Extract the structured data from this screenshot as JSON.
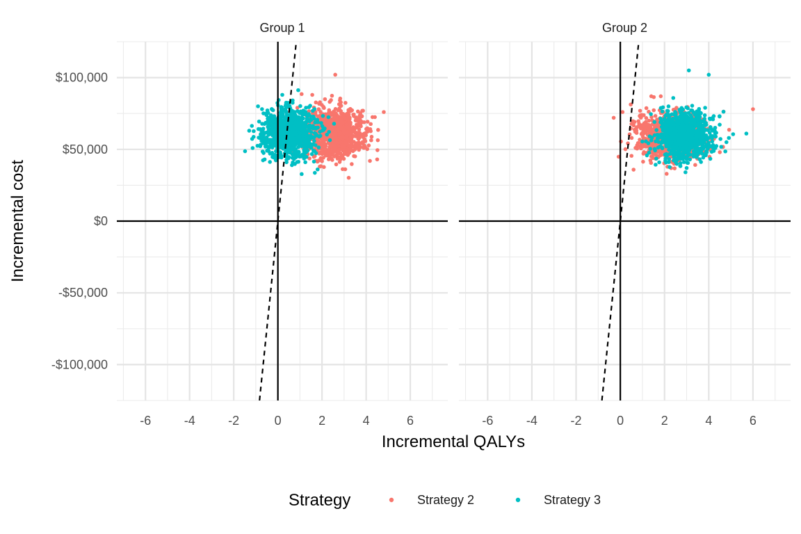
{
  "chart_data": {
    "type": "scatter",
    "xlabel": "Incremental QALYs",
    "ylabel": "Incremental cost",
    "xlim": [
      -7.3,
      7.7
    ],
    "ylim": [
      -125000,
      125000
    ],
    "x_ticks": [
      -6,
      -4,
      -2,
      0,
      2,
      4,
      6
    ],
    "x_tick_labels": [
      "-6",
      "-4",
      "-2",
      "0",
      "2",
      "4",
      "6"
    ],
    "y_ticks": [
      -100000,
      -50000,
      0,
      50000,
      100000
    ],
    "y_tick_labels": [
      "-$100,000",
      "-$50,000",
      "$0",
      "$50,000",
      "$100,000"
    ],
    "grid": true,
    "reference_lines": {
      "hline": 0,
      "vline": 0,
      "wtp_line_slope": 150000
    },
    "legend": {
      "title": "Strategy",
      "position": "bottom",
      "entries": [
        {
          "label": "Strategy 2",
          "color": "#F8766D"
        },
        {
          "label": "Strategy 3",
          "color": "#00BFC4"
        }
      ]
    },
    "facets": [
      {
        "label": "Group 1",
        "series": [
          {
            "name": "Strategy 2",
            "color": "#F8766D",
            "n": 1000,
            "center": [
              2.6,
              61000
            ],
            "sd": [
              0.65,
              8500
            ],
            "extremes": [
              [
                2.6,
                102000
              ],
              [
                4.5,
                43000
              ],
              [
                4.8,
                76000
              ],
              [
                1.9,
                38000
              ],
              [
                3.9,
                51000
              ]
            ]
          },
          {
            "name": "Strategy 3",
            "color": "#00BFC4",
            "n": 1000,
            "center": [
              0.5,
              62000
            ],
            "sd": [
              0.6,
              8500
            ],
            "extremes": [
              [
                -1.3,
                63000
              ],
              [
                -0.9,
                80000
              ],
              [
                0.2,
                88000
              ],
              [
                1.8,
                36000
              ],
              [
                -0.6,
                43000
              ]
            ]
          }
        ]
      },
      {
        "label": "Group 2",
        "series": [
          {
            "name": "Strategy 2",
            "color": "#F8766D",
            "n": 1000,
            "center": [
              2.3,
              60000
            ],
            "sd": [
              0.75,
              8000
            ],
            "extremes": [
              [
                -0.3,
                72000
              ],
              [
                0.1,
                76000
              ],
              [
                6.0,
                78000
              ],
              [
                4.5,
                48000
              ],
              [
                1.4,
                87000
              ]
            ]
          },
          {
            "name": "Strategy 3",
            "color": "#00BFC4",
            "n": 1000,
            "center": [
              2.9,
              60000
            ],
            "sd": [
              0.6,
              8000
            ],
            "extremes": [
              [
                3.1,
                105000
              ],
              [
                4.0,
                102000
              ],
              [
                5.7,
                61000
              ],
              [
                3.0,
                37000
              ],
              [
                4.8,
                55000
              ]
            ]
          }
        ]
      }
    ]
  }
}
